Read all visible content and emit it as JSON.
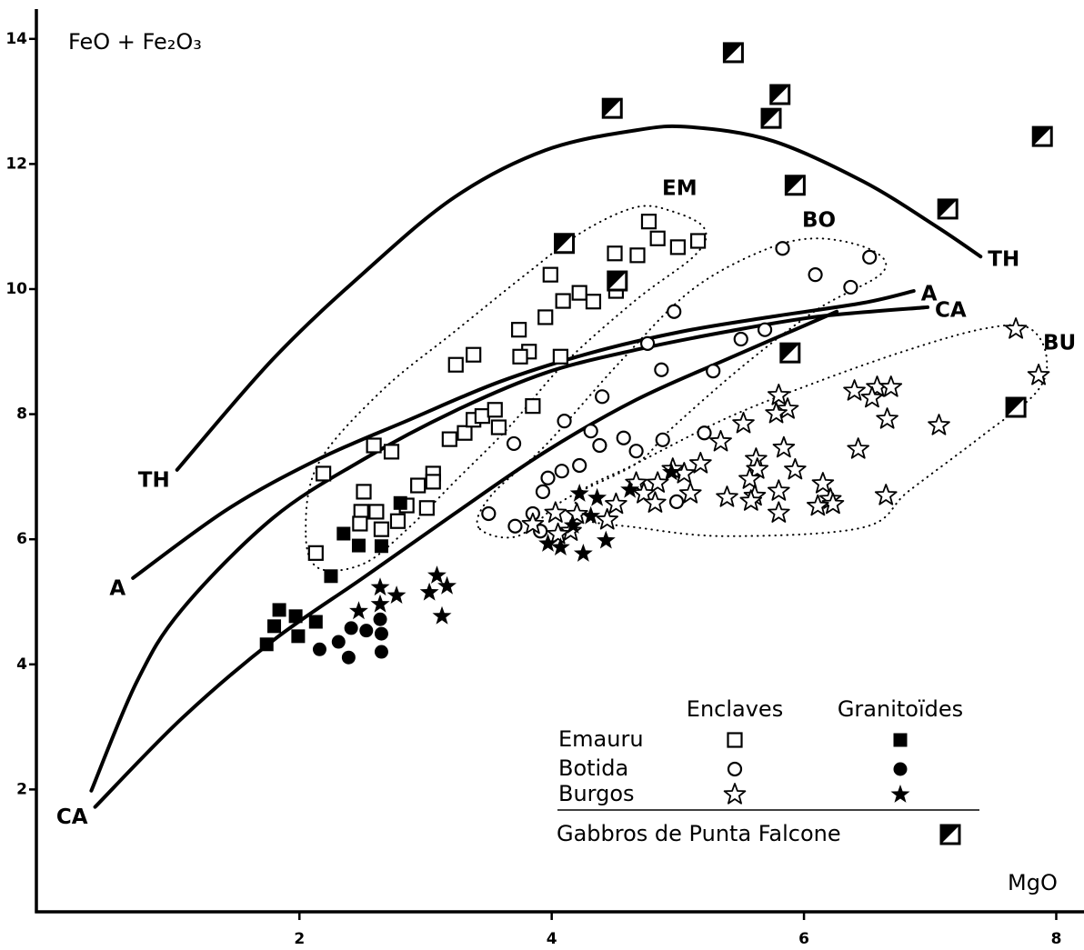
{
  "chart_data": {
    "type": "scatter",
    "y_label": "FeO + Fe₂O₃",
    "x_label": "MgO",
    "xlim": [
      -0.1,
      8.22
    ],
    "ylim": [
      0,
      14.6
    ],
    "xticks": [
      2,
      4,
      6,
      8
    ],
    "yticks": [
      2,
      4,
      6,
      8,
      10,
      12,
      14
    ],
    "series": [
      {
        "name": "Emauru",
        "group": "Enclaves",
        "marker": "open-square",
        "color": "#000000",
        "x": [
          2.19,
          2.13,
          2.51,
          2.73,
          2.59,
          2.49,
          2.48,
          2.65,
          2.61,
          2.78,
          2.85,
          2.94,
          3.06,
          3.06,
          3.01,
          3.19,
          3.31,
          3.38,
          3.45,
          3.55,
          3.58,
          3.85,
          3.24,
          3.38,
          3.82,
          3.74,
          3.75,
          4.07,
          3.99,
          4.09,
          4.22,
          4.33,
          4.51,
          4.5,
          4.68,
          4.77,
          4.84,
          5.0,
          5.16,
          3.95
        ],
        "values": [
          7.05,
          5.78,
          6.76,
          7.4,
          7.5,
          6.44,
          6.25,
          6.16,
          6.44,
          6.29,
          6.54,
          6.86,
          7.05,
          6.92,
          6.5,
          7.6,
          7.7,
          7.91,
          7.97,
          8.07,
          7.79,
          8.13,
          8.79,
          8.95,
          9.0,
          9.35,
          8.92,
          8.92,
          10.23,
          9.81,
          9.94,
          9.8,
          9.97,
          10.57,
          10.54,
          11.08,
          10.81,
          10.67,
          10.77,
          9.55
        ]
      },
      {
        "name": "Emauru",
        "group": "Granitoïdes",
        "marker": "filled-square",
        "color": "#000000",
        "x": [
          1.74,
          1.8,
          1.84,
          1.97,
          1.99,
          2.13,
          2.25,
          2.35,
          2.47,
          2.65,
          2.8
        ],
        "values": [
          4.32,
          4.61,
          4.87,
          4.77,
          4.45,
          4.68,
          5.41,
          6.09,
          5.9,
          5.89,
          6.58
        ]
      },
      {
        "name": "Botida",
        "group": "Enclaves",
        "marker": "open-circle",
        "color": "#000000",
        "x": [
          5.83,
          6.09,
          6.37,
          6.52,
          4.97,
          4.76,
          5.69,
          5.5,
          5.28,
          4.87,
          4.4,
          4.1,
          3.7,
          4.31,
          4.38,
          4.57,
          4.67,
          4.88,
          5.21,
          4.22,
          4.08,
          3.97,
          3.93,
          3.85,
          3.91,
          3.71,
          3.5,
          4.99
        ],
        "values": [
          10.65,
          10.23,
          10.03,
          10.51,
          9.64,
          9.13,
          9.35,
          9.2,
          8.69,
          8.71,
          8.28,
          7.89,
          7.53,
          7.73,
          7.5,
          7.62,
          7.41,
          7.59,
          7.7,
          7.18,
          7.09,
          6.98,
          6.76,
          6.41,
          6.13,
          6.21,
          6.41,
          6.6
        ]
      },
      {
        "name": "Botida",
        "group": "Granitoïdes",
        "marker": "filled-circle",
        "color": "#000000",
        "x": [
          2.16,
          2.31,
          2.39,
          2.41,
          2.53,
          2.64,
          2.65,
          2.65
        ],
        "values": [
          4.24,
          4.36,
          4.11,
          4.58,
          4.54,
          4.72,
          4.49,
          4.2
        ]
      },
      {
        "name": "Burgos",
        "group": "Enclaves",
        "marker": "open-star",
        "color": "#000000",
        "x": [
          7.68,
          7.86,
          6.58,
          6.69,
          6.4,
          6.54,
          6.66,
          6.43,
          7.07,
          6.65,
          5.8,
          5.87,
          5.78,
          5.52,
          5.34,
          5.18,
          5.05,
          5.84,
          5.62,
          5.63,
          5.57,
          5.61,
          5.58,
          5.39,
          5.8,
          5.93,
          6.15,
          6.21,
          6.23,
          6.11,
          5.8,
          4.96,
          4.84,
          4.67,
          4.73,
          4.82,
          5.1,
          4.51,
          4.44,
          4.2,
          4.15,
          4.03,
          3.85,
          4.05
        ],
        "values": [
          9.36,
          8.62,
          8.43,
          8.43,
          8.37,
          8.26,
          7.92,
          7.44,
          7.82,
          6.7,
          8.3,
          8.08,
          8.01,
          7.85,
          7.56,
          7.21,
          7.05,
          7.46,
          7.28,
          7.12,
          6.96,
          6.69,
          6.61,
          6.67,
          6.77,
          7.11,
          6.89,
          6.64,
          6.56,
          6.53,
          6.42,
          7.12,
          6.9,
          6.9,
          6.73,
          6.58,
          6.73,
          6.56,
          6.31,
          6.4,
          6.13,
          6.42,
          6.24,
          6.08
        ]
      },
      {
        "name": "Burgos",
        "group": "Granitoïdes",
        "marker": "filled-star",
        "color": "#000000",
        "x": [
          2.47,
          2.64,
          2.77,
          2.64,
          3.03,
          3.09,
          3.17,
          3.13,
          3.97,
          4.07,
          4.25,
          4.43,
          4.36,
          4.22,
          4.31,
          4.17,
          4.62,
          4.95
        ],
        "values": [
          4.85,
          5.23,
          5.1,
          4.96,
          5.15,
          5.42,
          5.25,
          4.77,
          5.93,
          5.87,
          5.77,
          5.98,
          6.66,
          6.73,
          6.37,
          6.22,
          6.79,
          7.07
        ]
      },
      {
        "name": "Gabbros de Punta Falcone",
        "marker": "half-square",
        "color": "#000000",
        "x": [
          4.48,
          5.44,
          5.81,
          5.74,
          5.93,
          7.89,
          7.14,
          4.1,
          4.52,
          5.89,
          7.68
        ],
        "values": [
          12.89,
          13.78,
          13.11,
          12.73,
          11.66,
          12.44,
          11.28,
          10.73,
          10.13,
          8.98,
          8.11
        ]
      }
    ],
    "curves": [
      {
        "name": "TH",
        "color": "#000000",
        "x": [
          1.03,
          1.79,
          2.51,
          3.23,
          3.95,
          4.67,
          5.1,
          5.75,
          6.47,
          7.05,
          7.4
        ],
        "values": [
          7.11,
          8.88,
          10.26,
          11.47,
          12.22,
          12.54,
          12.59,
          12.37,
          11.72,
          11.0,
          10.52
        ]
      },
      {
        "name": "A",
        "color": "#000000",
        "x": [
          0.68,
          1.43,
          2.15,
          2.87,
          3.59,
          4.31,
          5.03,
          5.75,
          6.47,
          6.87
        ],
        "values": [
          5.38,
          6.48,
          7.28,
          7.91,
          8.52,
          8.98,
          9.32,
          9.56,
          9.78,
          9.97
        ]
      },
      {
        "name": "CA",
        "color": "#000000",
        "x": [
          0.35,
          0.71,
          1.07,
          1.79,
          2.51,
          3.23,
          3.95,
          4.67,
          5.39,
          6.11,
          6.98
        ],
        "values": [
          1.98,
          3.72,
          4.88,
          6.34,
          7.28,
          8.05,
          8.66,
          9.03,
          9.32,
          9.56,
          9.71
        ]
      },
      {
        "name": "CA",
        "color": "#000000",
        "x": [
          0.38,
          1.07,
          1.79,
          2.51,
          3.23,
          3.95,
          4.67,
          5.39,
          6.26
        ],
        "values": [
          1.72,
          3.14,
          4.38,
          5.39,
          6.41,
          7.4,
          8.23,
          8.88,
          9.64
        ]
      }
    ],
    "envelopes": [
      {
        "name": "EM",
        "color": "#000000",
        "x": [
          2.05,
          2.15,
          2.65,
          3.23,
          3.81,
          4.24,
          4.67,
          4.96,
          5.21,
          5.14,
          4.67,
          4.1,
          3.66,
          3.23,
          2.87,
          2.51,
          2.15
        ],
        "values": [
          6.12,
          7.21,
          8.37,
          9.32,
          10.26,
          10.91,
          11.31,
          11.24,
          10.97,
          10.55,
          9.83,
          8.81,
          7.79,
          6.92,
          6.19,
          5.61,
          5.54
        ]
      },
      {
        "name": "BO",
        "color": "#000000",
        "x": [
          3.42,
          3.52,
          3.95,
          4.53,
          5.1,
          5.68,
          6.11,
          6.54,
          6.62,
          6.11,
          5.54,
          4.96,
          4.67,
          4.1,
          3.73
        ],
        "values": [
          6.19,
          6.7,
          7.5,
          8.81,
          9.97,
          10.62,
          10.81,
          10.62,
          10.26,
          9.68,
          8.81,
          7.79,
          7.21,
          6.63,
          6.05
        ]
      },
      {
        "name": "BU",
        "color": "#000000",
        "x": [
          4.24,
          4.67,
          5.39,
          6.11,
          6.83,
          7.41,
          7.77,
          7.92,
          7.85,
          7.41,
          6.83,
          6.47,
          5.39,
          4.67,
          4.24
        ],
        "values": [
          6.77,
          7.21,
          7.94,
          8.52,
          9.03,
          9.36,
          9.39,
          8.95,
          8.37,
          7.65,
          6.77,
          6.19,
          6.05,
          6.19,
          6.34
        ]
      }
    ]
  }
}
